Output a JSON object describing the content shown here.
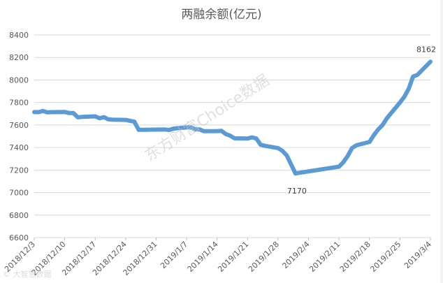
{
  "chart_data": {
    "type": "line",
    "title": "两融余额(亿元)",
    "xlabel": "",
    "ylabel": "",
    "ylim": [
      6600,
      8400
    ],
    "yticks": [
      6600,
      6800,
      7000,
      7200,
      7400,
      7600,
      7800,
      8000,
      8200,
      8400
    ],
    "xtick_labels": [
      "2018/12/3",
      "2018/12/10",
      "2018/12/17",
      "2018/12/24",
      "2018/12/31",
      "2019/1/7",
      "2019/1/14",
      "2019/1/21",
      "2019/1/28",
      "2019/2/4",
      "2019/2/11",
      "2019/2/18",
      "2019/2/25",
      "2019/3/4"
    ],
    "grid": "horizontal",
    "legend": "none",
    "line_color": "#5b9bd5",
    "series": [
      {
        "x": [
          "2018/12/3",
          "2018/12/4",
          "2018/12/5",
          "2018/12/6",
          "2018/12/7",
          "2018/12/10",
          "2018/12/11",
          "2018/12/12",
          "2018/12/13",
          "2018/12/14",
          "2018/12/17",
          "2018/12/18",
          "2018/12/19",
          "2018/12/20",
          "2018/12/21",
          "2018/12/24",
          "2018/12/25",
          "2018/12/26",
          "2018/12/27",
          "2018/12/28",
          "2019/1/2",
          "2019/1/3",
          "2019/1/4",
          "2019/1/7",
          "2019/1/8",
          "2019/1/9",
          "2019/1/10",
          "2019/1/11",
          "2019/1/14",
          "2019/1/15",
          "2019/1/16",
          "2019/1/17",
          "2019/1/18",
          "2019/1/21",
          "2019/1/22",
          "2019/1/23",
          "2019/1/24",
          "2019/1/25",
          "2019/1/28",
          "2019/1/29",
          "2019/1/30",
          "2019/1/31",
          "2019/2/1",
          "2019/2/11",
          "2019/2/12",
          "2019/2/13",
          "2019/2/14",
          "2019/2/15",
          "2019/2/18",
          "2019/2/19",
          "2019/2/20",
          "2019/2/21",
          "2019/2/22",
          "2019/2/25",
          "2019/2/26",
          "2019/2/27",
          "2019/2/28",
          "2019/3/1",
          "2019/3/4"
        ],
        "values": [
          7715,
          7714,
          7725,
          7712,
          7714,
          7716,
          7706,
          7706,
          7668,
          7672,
          7677,
          7660,
          7670,
          7650,
          7648,
          7645,
          7637,
          7630,
          7557,
          7558,
          7560,
          7556,
          7568,
          7578,
          7578,
          7562,
          7560,
          7545,
          7546,
          7548,
          7520,
          7505,
          7482,
          7480,
          7490,
          7480,
          7425,
          7415,
          7395,
          7370,
          7330,
          7250,
          7170,
          7230,
          7270,
          7325,
          7395,
          7420,
          7450,
          7510,
          7560,
          7600,
          7660,
          7800,
          7850,
          7920,
          8030,
          8045,
          8162
        ]
      }
    ],
    "annotations": [
      {
        "x": "2019/2/1",
        "value": 7170,
        "text": "7170"
      },
      {
        "x": "2019/3/4",
        "value": 8162,
        "text": "8162"
      }
    ],
    "watermark": "东方财富Choice数据",
    "corner_watermark": "© 大智慧数据"
  }
}
